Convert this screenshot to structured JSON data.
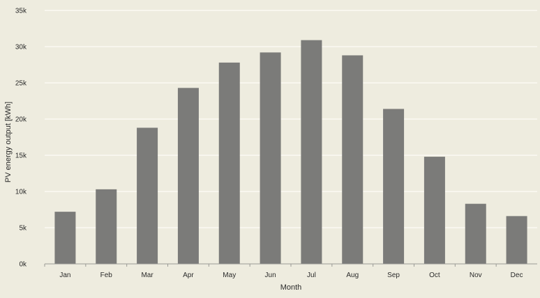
{
  "chart_data": {
    "type": "bar",
    "xlabel": "Month",
    "ylabel": "PV energy output [kWh]",
    "categories": [
      "Jan",
      "Feb",
      "Mar",
      "Apr",
      "May",
      "Jun",
      "Jul",
      "Aug",
      "Sep",
      "Oct",
      "Nov",
      "Dec"
    ],
    "values": [
      7200,
      10300,
      18800,
      24300,
      27800,
      29200,
      30900,
      28800,
      21400,
      14800,
      8300,
      6600
    ],
    "ylim": [
      0,
      35000
    ],
    "yticks": [
      0,
      5000,
      10000,
      15000,
      20000,
      25000,
      30000,
      35000
    ],
    "ytick_labels": [
      "0k",
      "5k",
      "10k",
      "15k",
      "20k",
      "25k",
      "30k",
      "35k"
    ],
    "grid": true,
    "colors": {
      "bar": "#7b7b79",
      "background": "#eeecdf",
      "grid": "#fbfaf3"
    }
  }
}
